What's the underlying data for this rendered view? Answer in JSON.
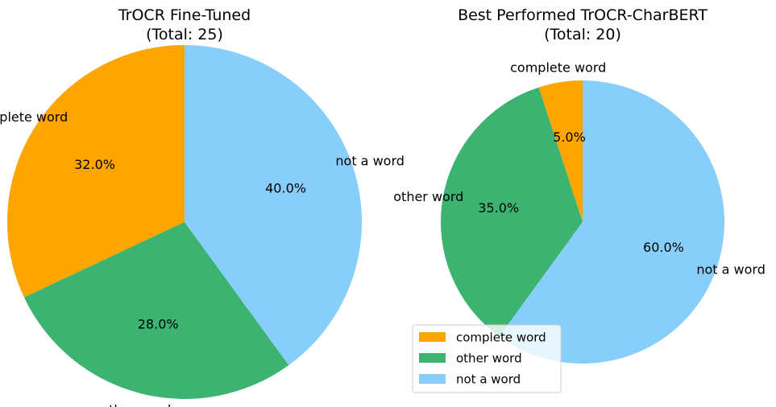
{
  "chart_data": [
    {
      "type": "pie",
      "title": "TrOCR Fine-Tuned",
      "subtitle": "(Total: 25)",
      "categories": [
        "complete word",
        "other word",
        "not a word"
      ],
      "values": [
        32.0,
        28.0,
        40.0
      ],
      "pct_labels": [
        "32.0%",
        "28.0%",
        "40.0%"
      ],
      "colors": [
        "#FFA500",
        "#3CB371",
        "#87CEFA"
      ],
      "start_angle_deg": 90,
      "direction": "counterclockwise",
      "legend": null
    },
    {
      "type": "pie",
      "title": "Best Performed TrOCR-CharBERT",
      "subtitle": "(Total: 20)",
      "categories": [
        "complete word",
        "other word",
        "not a word"
      ],
      "values": [
        5.0,
        35.0,
        60.0
      ],
      "pct_labels": [
        "5.0%",
        "35.0%",
        "60.0%"
      ],
      "colors": [
        "#FFA500",
        "#3CB371",
        "#87CEFA"
      ],
      "start_angle_deg": 90,
      "direction": "counterclockwise",
      "legend": {
        "placement": "lower-left",
        "entries": [
          "complete word",
          "other word",
          "not a word"
        ]
      }
    }
  ]
}
